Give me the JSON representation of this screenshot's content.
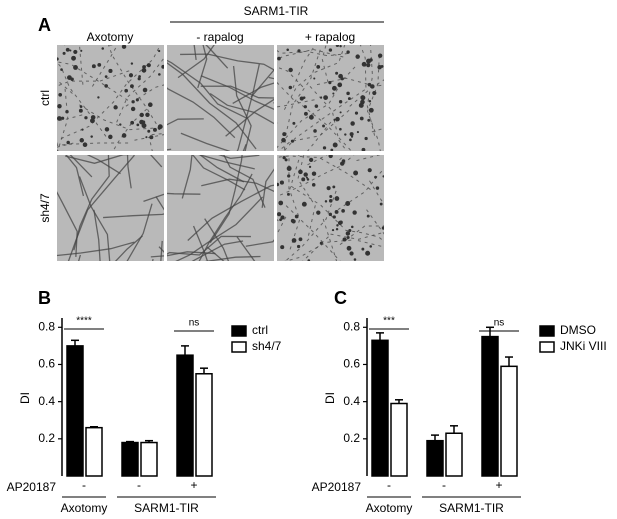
{
  "panel_a": {
    "letter": "A",
    "group_header": "SARM1-TIR",
    "columns": [
      "Axotomy",
      "- rapalog",
      "+ rapalog"
    ],
    "rows": [
      "ctrl",
      "sh4/7"
    ]
  },
  "chart_data": [
    {
      "type": "bar",
      "panel": "B",
      "ylabel": "DI",
      "ylim": [
        0,
        0.85
      ],
      "yticks": [
        0.2,
        0.4,
        0.6,
        0.8
      ],
      "categories": [
        "-",
        "-",
        "+"
      ],
      "x_row_label": "AP20187",
      "group_labels": [
        "Axotomy",
        "SARM1-TIR"
      ],
      "annotations": [
        "****",
        "ns"
      ],
      "series": [
        {
          "name": "ctrl",
          "color": "#000000",
          "values": [
            0.7,
            0.18,
            0.65
          ],
          "errors": [
            0.03,
            0.005,
            0.05
          ]
        },
        {
          "name": "sh4/7",
          "color": "#ffffff",
          "values": [
            0.26,
            0.18,
            0.55
          ],
          "errors": [
            0.005,
            0.01,
            0.03
          ]
        }
      ]
    },
    {
      "type": "bar",
      "panel": "C",
      "ylabel": "DI",
      "ylim": [
        0,
        0.85
      ],
      "yticks": [
        0.2,
        0.4,
        0.6,
        0.8
      ],
      "categories": [
        "-",
        "-",
        "+"
      ],
      "x_row_label": "AP20187",
      "group_labels": [
        "Axotomy",
        "SARM1-TIR"
      ],
      "annotations": [
        "***",
        "ns"
      ],
      "series": [
        {
          "name": "DMSO",
          "color": "#000000",
          "values": [
            0.73,
            0.19,
            0.75
          ],
          "errors": [
            0.04,
            0.03,
            0.05
          ]
        },
        {
          "name": "JNKi VIII",
          "color": "#ffffff",
          "values": [
            0.39,
            0.23,
            0.59
          ],
          "errors": [
            0.02,
            0.04,
            0.05
          ]
        }
      ]
    }
  ]
}
